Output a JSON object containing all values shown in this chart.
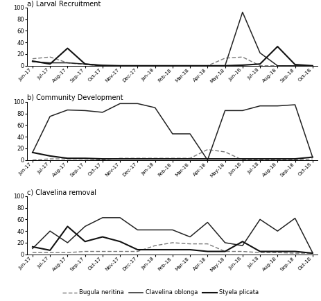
{
  "x_labels": [
    "Jun-17",
    "Jul-17",
    "Aug-17",
    "Sep-17",
    "Oct-17",
    "Nov-17",
    "Dec-17",
    "Jan-18",
    "Feb-18",
    "Mar-18",
    "Apr-18",
    "May-18",
    "Jun-18",
    "Jul-18",
    "Aug-18",
    "Sep-18",
    "Oct-18"
  ],
  "panel_a_title": "a) Larval Recruitment",
  "panel_b_title": "b) Community Development",
  "panel_c_title": "c) Clavelina removal",
  "panel_a": {
    "bugula": [
      12,
      15,
      5,
      2,
      0,
      0,
      0,
      0,
      0,
      0,
      0,
      13,
      15,
      0,
      0,
      0,
      0
    ],
    "clavelina": [
      7,
      5,
      5,
      3,
      1,
      0,
      0,
      0,
      0,
      0,
      0,
      0,
      92,
      22,
      0,
      0,
      0
    ],
    "styela": [
      8,
      3,
      30,
      3,
      0,
      0,
      0,
      0,
      0,
      0,
      0,
      0,
      1,
      3,
      33,
      2,
      0
    ]
  },
  "panel_b": {
    "bugula": [
      0,
      2,
      2,
      2,
      0,
      3,
      3,
      3,
      3,
      3,
      18,
      14,
      0,
      0,
      0,
      0,
      2
    ],
    "clavelina": [
      13,
      75,
      86,
      85,
      82,
      97,
      97,
      90,
      45,
      45,
      0,
      85,
      85,
      93,
      93,
      95,
      5
    ],
    "styela": [
      13,
      7,
      3,
      3,
      2,
      2,
      2,
      2,
      2,
      2,
      2,
      2,
      2,
      2,
      2,
      2,
      5
    ]
  },
  "panel_c": {
    "bugula": [
      3,
      3,
      3,
      5,
      5,
      5,
      5,
      15,
      20,
      18,
      18,
      5,
      5,
      3,
      3,
      2,
      2
    ],
    "clavelina": [
      10,
      40,
      20,
      48,
      63,
      63,
      42,
      42,
      42,
      30,
      55,
      20,
      15,
      60,
      40,
      62,
      3
    ],
    "styela": [
      13,
      7,
      48,
      22,
      30,
      22,
      8,
      8,
      8,
      8,
      5,
      5,
      22,
      5,
      5,
      5,
      2
    ]
  },
  "ylim": [
    0,
    100
  ],
  "yticks": [
    0,
    20,
    40,
    60,
    80,
    100
  ],
  "color_bugula": "#777777",
  "color_clavelina": "#222222",
  "color_styela": "#111111",
  "legend_labels": [
    "Bugula neritina",
    "Clavelina oblonga",
    "Styela plicata"
  ]
}
